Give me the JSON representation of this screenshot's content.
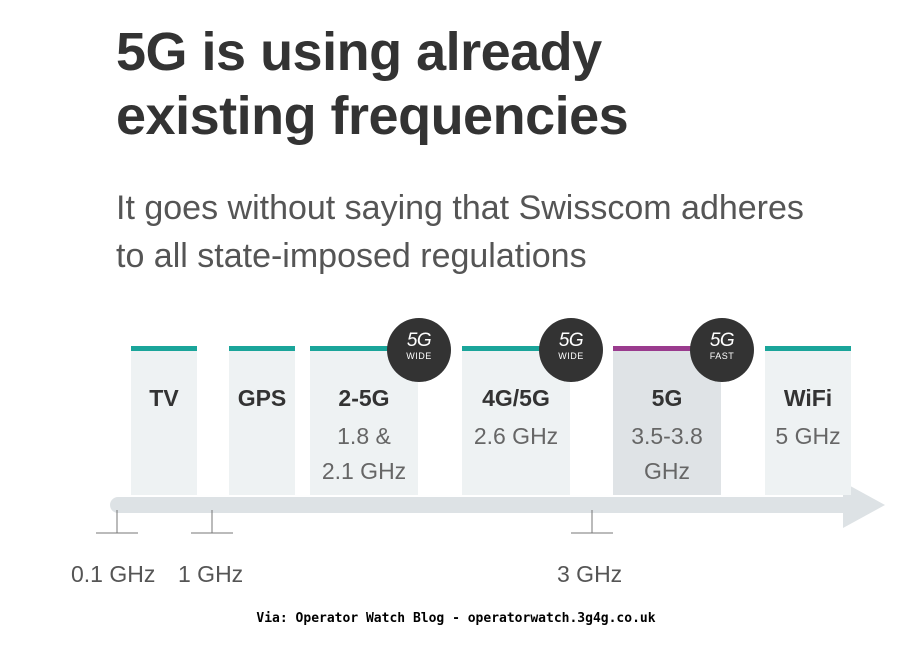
{
  "title": {
    "line1": "5G is using already",
    "line2": "existing frequencies"
  },
  "subtitle": {
    "line1": "It goes without saying that Swisscom adheres",
    "line2": "to all state-imposed regulations"
  },
  "colors": {
    "teal": "#1aa59a",
    "purple": "#9a3b8e",
    "band_light": "#eef2f3",
    "band_highlight": "#dfe3e6",
    "axis": "#dde2e5",
    "badge": "#333333"
  },
  "bands": [
    {
      "label": "TV",
      "freq": ""
    },
    {
      "label": "GPS",
      "freq": ""
    },
    {
      "label": "2-5G",
      "freq": "1.8 &\n2.1 GHz",
      "badge": {
        "main": "5G",
        "sub": "WIDE"
      }
    },
    {
      "label": "4G/5G",
      "freq": "2.6 GHz",
      "badge": {
        "main": "5G",
        "sub": "WIDE"
      }
    },
    {
      "label": "5G",
      "freq": "3.5-3.8\nGHz",
      "badge": {
        "main": "5G",
        "sub": "FAST"
      },
      "highlight": true
    },
    {
      "label": "WiFi",
      "freq": "5 GHz"
    }
  ],
  "ticks": [
    {
      "label": "0.1 GHz"
    },
    {
      "label": "1 GHz"
    },
    {
      "label": "3 GHz"
    }
  ],
  "footer": "Via: Operator Watch Blog - operatorwatch.3g4g.co.uk"
}
